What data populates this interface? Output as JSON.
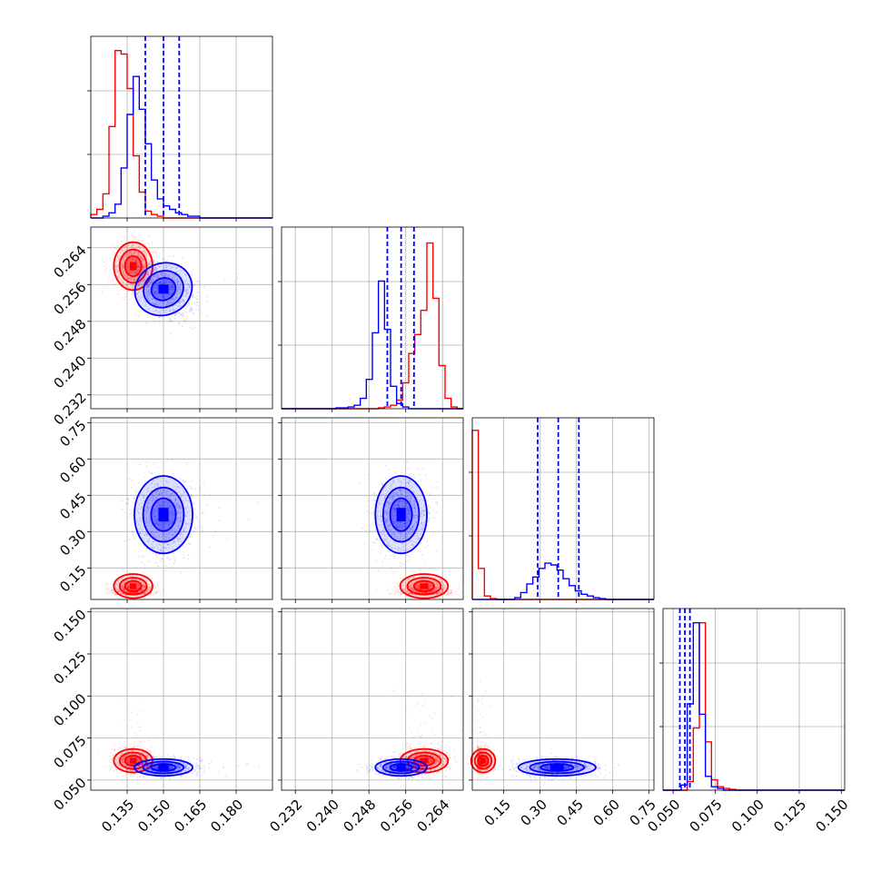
{
  "chart_data": {
    "type": "corner",
    "parameters": [
      {
        "range": [
          0.12,
          0.195
        ],
        "ticks": [
          "0.135",
          "0.150",
          "0.165",
          "0.180"
        ],
        "tick_values": [
          0.135,
          0.15,
          0.165,
          0.18
        ]
      },
      {
        "range": [
          0.229,
          0.2685
        ],
        "ticks": [
          "0.232",
          "0.240",
          "0.248",
          "0.256",
          "0.264"
        ],
        "tick_values": [
          0.232,
          0.24,
          0.248,
          0.256,
          0.264
        ]
      },
      {
        "range": [
          0.02,
          0.77
        ],
        "ticks": [
          "0.15",
          "0.30",
          "0.45",
          "0.60",
          "0.75"
        ],
        "tick_values": [
          0.15,
          0.3,
          0.45,
          0.6,
          0.75
        ]
      },
      {
        "range": [
          0.044,
          0.152
        ],
        "ticks": [
          "0.050",
          "0.075",
          "0.100",
          "0.125",
          "0.150"
        ],
        "tick_values": [
          0.05,
          0.075,
          0.1,
          0.125,
          0.15
        ]
      }
    ],
    "series": [
      {
        "color": "#ff0000",
        "means": [
          0.1375,
          0.26,
          0.065,
          0.0615
        ],
        "sds": [
          0.004,
          0.0026,
          0.025,
          0.0035
        ],
        "hist1d": [
          {
            "edges": [
              0.12,
              0.195
            ],
            "counts": [
              0.02,
              0.05,
              0.14,
              0.53,
              0.97,
              0.95,
              0.75,
              0.36,
              0.15,
              0.04,
              0.02,
              0.01,
              0,
              0,
              0,
              0,
              0,
              0,
              0,
              0,
              0,
              0,
              0,
              0,
              0,
              0,
              0,
              0,
              0,
              0
            ]
          },
          {
            "edges": [
              0.229,
              0.2685
            ],
            "counts": [
              0,
              0,
              0,
              0,
              0,
              0,
              0,
              0,
              0,
              0,
              0,
              0,
              0,
              0,
              0,
              0,
              0.005,
              0.01,
              0.02,
              0.05,
              0.15,
              0.32,
              0.43,
              0.57,
              0.96,
              0.64,
              0.25,
              0.06,
              0.01,
              0
            ]
          },
          {
            "edges": [
              0.02,
              0.77
            ],
            "counts": [
              0.98,
              0.18,
              0.02,
              0.005,
              0,
              0,
              0,
              0,
              0,
              0,
              0,
              0,
              0,
              0,
              0,
              0,
              0,
              0,
              0,
              0,
              0,
              0,
              0,
              0,
              0,
              0,
              0,
              0,
              0,
              0
            ]
          },
          {
            "edges": [
              0.044,
              0.152
            ],
            "counts": [
              0,
              0,
              0,
              0,
              0.05,
              0.36,
              0.97,
              0.28,
              0.06,
              0.02,
              0.01,
              0.005,
              0,
              0,
              0,
              0,
              0,
              0,
              0,
              0,
              0,
              0,
              0,
              0,
              0,
              0,
              0,
              0,
              0,
              0
            ]
          }
        ]
      },
      {
        "color": "#0000ff",
        "means": [
          0.15,
          0.255,
          0.37,
          0.0575
        ],
        "sds": [
          0.006,
          0.0028,
          0.08,
          0.0025
        ],
        "quantiles": [
          [
            0.1425,
            0.15,
            0.1565
          ],
          [
            0.252,
            0.255,
            0.2578
          ],
          [
            0.29,
            0.375,
            0.46
          ],
          [
            0.054,
            0.057,
            0.06
          ]
        ],
        "hist1d": [
          {
            "edges": [
              0.12,
              0.195
            ],
            "counts": [
              0,
              0,
              0.01,
              0.03,
              0.08,
              0.29,
              0.6,
              0.82,
              0.63,
              0.43,
              0.22,
              0.11,
              0.07,
              0.05,
              0.03,
              0.02,
              0.01,
              0.01,
              0,
              0,
              0,
              0,
              0,
              0,
              0,
              0,
              0,
              0,
              0,
              0
            ]
          },
          {
            "edges": [
              0.229,
              0.2685
            ],
            "counts": [
              0,
              0,
              0,
              0,
              0,
              0,
              0,
              0,
              0,
              0.005,
              0.005,
              0.01,
              0.02,
              0.06,
              0.17,
              0.44,
              0.74,
              0.46,
              0.13,
              0.03,
              0.01,
              0,
              0,
              0,
              0,
              0,
              0,
              0,
              0,
              0
            ]
          },
          {
            "edges": [
              0.02,
              0.77
            ],
            "counts": [
              0,
              0,
              0,
              0,
              0,
              0,
              0,
              0.01,
              0.04,
              0.09,
              0.13,
              0.18,
              0.21,
              0.2,
              0.17,
              0.12,
              0.08,
              0.05,
              0.03,
              0.02,
              0.01,
              0.005,
              0,
              0,
              0,
              0,
              0,
              0,
              0,
              0
            ]
          },
          {
            "edges": [
              0.044,
              0.152
            ],
            "counts": [
              0,
              0,
              0,
              0.03,
              0.5,
              0.97,
              0.44,
              0.08,
              0.02,
              0.01,
              0,
              0,
              0,
              0,
              0,
              0,
              0,
              0,
              0,
              0,
              0,
              0,
              0,
              0,
              0,
              0,
              0,
              0,
              0,
              0
            ]
          }
        ]
      }
    ],
    "grid": true,
    "quantile_lines_style": "dashed"
  }
}
